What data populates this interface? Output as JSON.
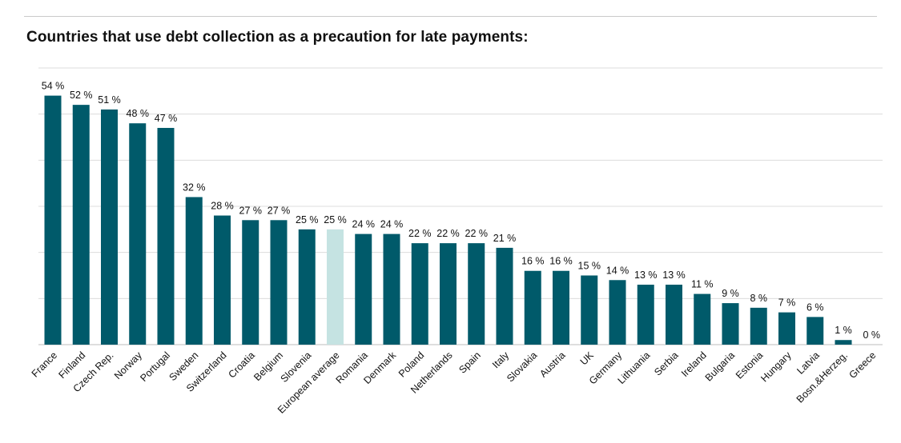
{
  "chart_data": {
    "type": "bar",
    "title": "Countries that use debt collection as a precaution for late payments:",
    "categories": [
      "France",
      "Finland",
      "Czech Rep.",
      "Norway",
      "Portugal",
      "Sweden",
      "Switzerland",
      "Croatia",
      "Belgium",
      "Slovenia",
      "European average",
      "Romania",
      "Denmark",
      "Poland",
      "Netherlands",
      "Spain",
      "Italy",
      "Slovakia",
      "Austria",
      "UK",
      "Germany",
      "Lithuania",
      "Serbia",
      "Ireland",
      "Bulgaria",
      "Estonia",
      "Hungary",
      "Latvia",
      "Bosn.&Herzeg.",
      "Greece"
    ],
    "values": [
      54,
      52,
      51,
      48,
      47,
      32,
      28,
      27,
      27,
      25,
      25,
      24,
      24,
      22,
      22,
      22,
      21,
      16,
      16,
      15,
      14,
      13,
      13,
      11,
      9,
      8,
      7,
      6,
      1,
      0
    ],
    "value_labels": [
      "54 %",
      "52 %",
      "51 %",
      "48 %",
      "47 %",
      "32 %",
      "28 %",
      "27 %",
      "27 %",
      "25 %",
      "25 %",
      "24 %",
      "24 %",
      "22 %",
      "22 %",
      "22 %",
      "21 %",
      "16 %",
      "16 %",
      "15 %",
      "14 %",
      "13 %",
      "13 %",
      "11 %",
      "9 %",
      "8 %",
      "7 %",
      "6 %",
      "1 %",
      "0 %"
    ],
    "highlight_category": "European average",
    "ylim": [
      0,
      60
    ],
    "grid": true,
    "xlabel": "",
    "ylabel": "",
    "colors": {
      "bar": "#005a6a",
      "highlight": "#c5e3e2",
      "grid": "#dcdcdc",
      "text": "#111111"
    }
  }
}
